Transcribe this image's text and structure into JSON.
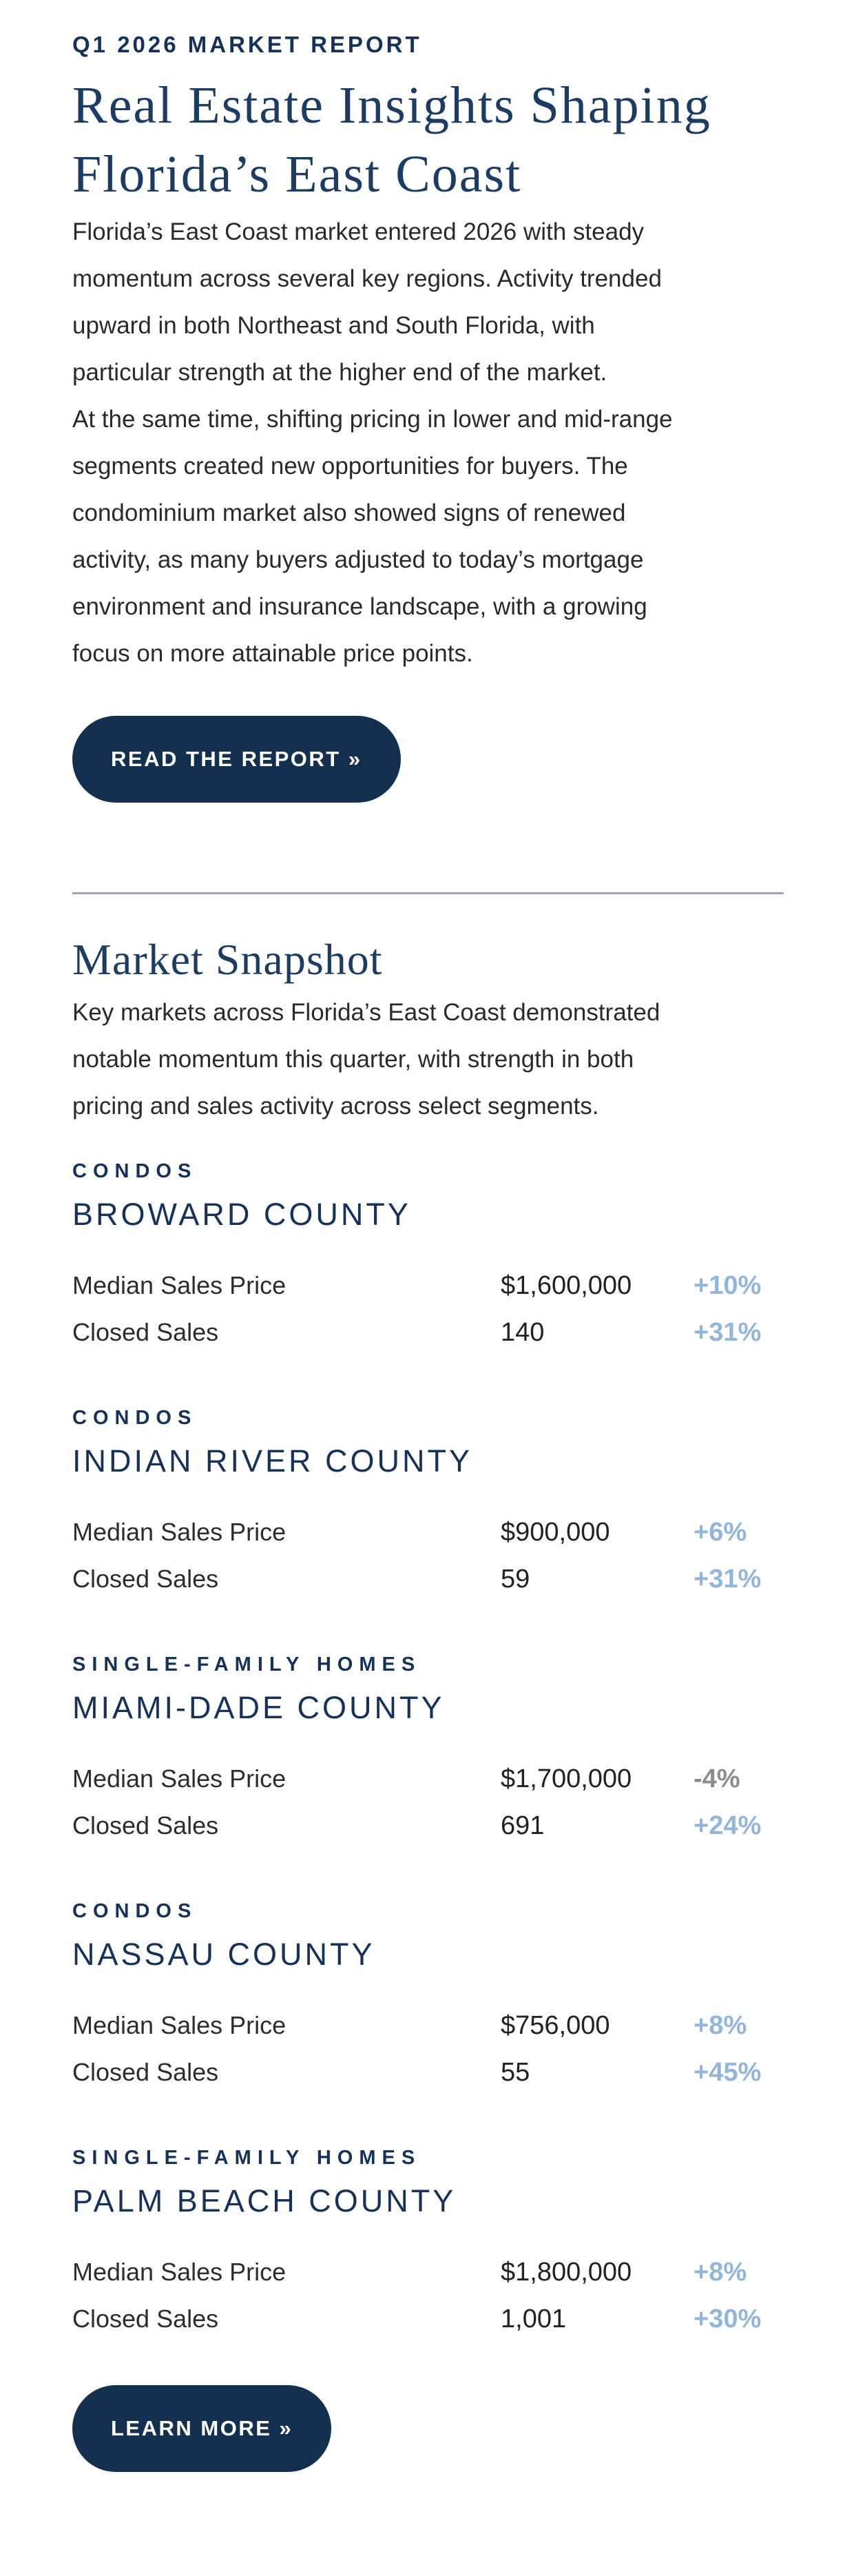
{
  "colors": {
    "navy": "#16325a",
    "heading_navy": "#1d3c63",
    "body_text": "#2a2a2a",
    "positive_change": "#92b5da",
    "negative_change": "#8c8c8c",
    "button_bg": "#14304f",
    "divider": "#99a5b5"
  },
  "hero": {
    "eyebrow": "Q1 2026 MARKET REPORT",
    "title_lines": [
      "Real Estate Insights Shaping",
      "Florida’s East Coast"
    ],
    "paragraph_1_lines": [
      "Florida’s East Coast market entered 2026 with steady",
      "momentum across several key regions. Activity trended",
      "upward in both Northeast and South Florida, with",
      "particular strength at the higher end of the market."
    ],
    "paragraph_2_lines": [
      "At the same time, shifting pricing in lower and mid-range",
      "segments created new opportunities for buyers. The",
      "condominium market also showed signs of renewed",
      "activity, as many buyers adjusted to today’s mortgage",
      "environment and insurance landscape, with a growing",
      "focus on more attainable price points."
    ],
    "read_report_button": "READ THE REPORT »"
  },
  "snapshot": {
    "heading": "Market Snapshot",
    "description_lines": [
      "Key markets across Florida’s East Coast demonstrated",
      "notable momentum this quarter, with strength in both",
      "pricing and sales activity across select segments."
    ],
    "markets": [
      {
        "category": "CONDOS",
        "county": "BROWARD COUNTY",
        "rows": [
          {
            "label": "Median Sales Price",
            "value": "$1,600,000",
            "change": "+10%",
            "trend": "up"
          },
          {
            "label": "Closed Sales",
            "value": "140",
            "change": "+31%",
            "trend": "up"
          }
        ]
      },
      {
        "category": "CONDOS",
        "county": "INDIAN RIVER COUNTY",
        "rows": [
          {
            "label": "Median Sales Price",
            "value": "$900,000",
            "change": "+6%",
            "trend": "up"
          },
          {
            "label": "Closed Sales",
            "value": "59",
            "change": "+31%",
            "trend": "up"
          }
        ]
      },
      {
        "category": "SINGLE-FAMILY HOMES",
        "county": "MIAMI-DADE COUNTY",
        "rows": [
          {
            "label": "Median Sales Price",
            "value": "$1,700,000",
            "change": "-4%",
            "trend": "down"
          },
          {
            "label": "Closed Sales",
            "value": "691",
            "change": "+24%",
            "trend": "up"
          }
        ]
      },
      {
        "category": "CONDOS",
        "county": "NASSAU COUNTY",
        "rows": [
          {
            "label": "Median Sales Price",
            "value": "$756,000",
            "change": "+8%",
            "trend": "up"
          },
          {
            "label": "Closed Sales",
            "value": "55",
            "change": "+45%",
            "trend": "up"
          }
        ]
      },
      {
        "category": "SINGLE-FAMILY HOMES",
        "county": "PALM BEACH COUNTY",
        "rows": [
          {
            "label": "Median Sales Price",
            "value": "$1,800,000",
            "change": "+8%",
            "trend": "up"
          },
          {
            "label": "Closed Sales",
            "value": "1,001",
            "change": "+30%",
            "trend": "up"
          }
        ]
      }
    ],
    "learn_more_button": "LEARN MORE »"
  }
}
